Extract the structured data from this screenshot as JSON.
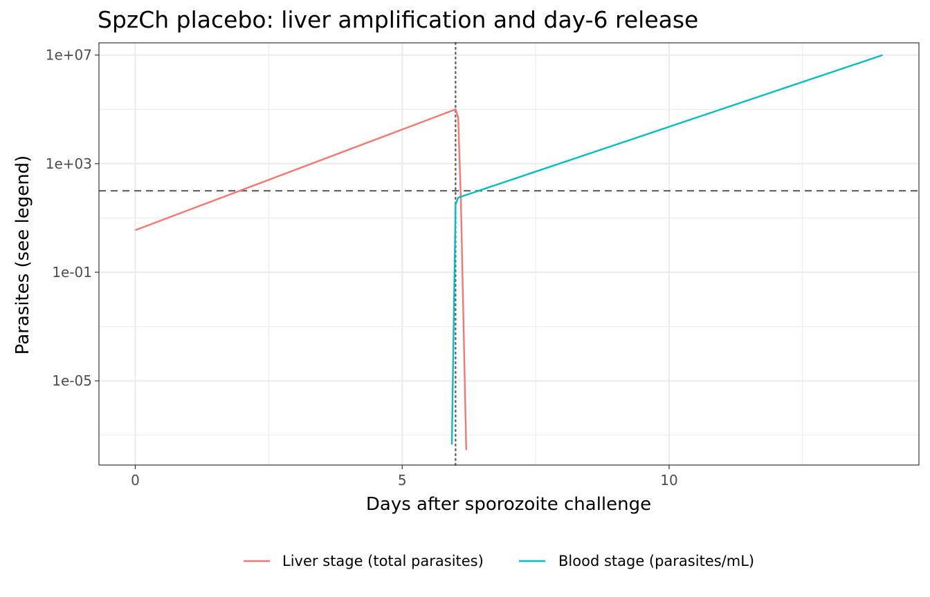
{
  "chart_data": {
    "type": "line",
    "title": "SpzCh placebo: liver amplification and day-6 release",
    "xlabel": "Days after sporozoite challenge",
    "ylabel": "Parasites (see legend)",
    "y_scale": "log10",
    "xlim": [
      -0.68,
      14.68
    ],
    "ylim_log10": [
      -8.1,
      7.45
    ],
    "x_ticks": [
      0,
      5,
      10
    ],
    "x_tick_labels": [
      "0",
      "5",
      "10"
    ],
    "y_ticks_log10": [
      7,
      3,
      -1,
      -5
    ],
    "y_tick_labels": [
      "1e+07",
      "1e+03",
      "1e-01",
      "1e-05"
    ],
    "grid": true,
    "legend_position": "bottom",
    "colors": {
      "liver": "#F8766D",
      "blood": "#00BFC4",
      "reference": "#666666"
    },
    "series": [
      {
        "name": "Liver stage (total parasites)",
        "color": "#F8766D",
        "points_log10": [
          [
            0,
            0.55
          ],
          [
            6.0,
            5.0
          ],
          [
            6.05,
            4.7
          ],
          [
            6.1,
            1.6
          ],
          [
            6.2,
            -7.55
          ]
        ]
      },
      {
        "name": "Blood stage (parasites/mL)",
        "color": "#00BFC4",
        "points_log10": [
          [
            5.93,
            -7.35
          ],
          [
            6.0,
            1.5
          ],
          [
            6.05,
            1.75
          ],
          [
            14.0,
            7.0
          ]
        ]
      }
    ],
    "reference_lines": [
      {
        "orientation": "horizontal",
        "style": "dashed",
        "y_log10": 2.0
      },
      {
        "orientation": "vertical",
        "style": "dotted",
        "x": 6.0
      }
    ]
  }
}
